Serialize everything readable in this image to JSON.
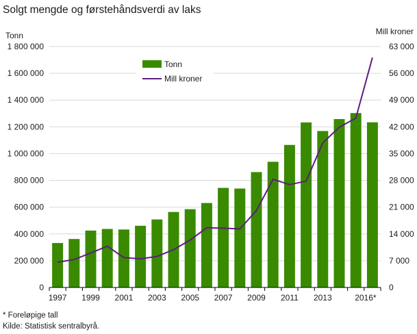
{
  "chart_data": {
    "type": "bar+line",
    "title": "Solgt mengde og førstehåndsverdi av laks",
    "categories": [
      "1997",
      "1998",
      "1999",
      "2000",
      "2001",
      "2002",
      "2003",
      "2004",
      "2005",
      "2006",
      "2007",
      "2008",
      "2009",
      "2010",
      "2011",
      "2012",
      "2013",
      "2014",
      "2015",
      "2016*"
    ],
    "x_tick_labels": [
      "1997",
      "1999",
      "2001",
      "2003",
      "2005",
      "2007",
      "2009",
      "2011",
      "2013",
      "2016*"
    ],
    "series": [
      {
        "name": "Tonn",
        "type": "bar",
        "axis": "left",
        "color": "#3a8a00",
        "values": [
          332000,
          362000,
          425000,
          437000,
          433000,
          461000,
          508000,
          564000,
          585000,
          631000,
          744000,
          739000,
          862000,
          939000,
          1065000,
          1233000,
          1169000,
          1258000,
          1303000,
          1234000
        ]
      },
      {
        "name": "Mill kroner",
        "type": "line",
        "axis": "right",
        "color": "#5b1e7d",
        "values": [
          6600,
          7300,
          9000,
          10800,
          7800,
          7500,
          8100,
          9900,
          12400,
          15600,
          15500,
          15300,
          20100,
          28300,
          26900,
          27800,
          37800,
          41900,
          44300,
          60100
        ]
      }
    ],
    "y_left": {
      "label": "Tonn",
      "min": 0,
      "max": 1800000,
      "ticks": [
        0,
        200000,
        400000,
        600000,
        800000,
        1000000,
        1200000,
        1400000,
        1600000,
        1800000
      ],
      "tick_labels": [
        "0",
        "200 000",
        "400 000",
        "600 000",
        "800 000",
        "1 000 000",
        "1 200 000",
        "1 400 000",
        "1 600 000",
        "1 800 000"
      ]
    },
    "y_right": {
      "label": "Mill kroner",
      "min": 0,
      "max": 63000,
      "ticks": [
        0,
        7000,
        14000,
        21000,
        28000,
        35000,
        42000,
        49000,
        56000,
        63000
      ],
      "tick_labels": [
        "0",
        "7 000",
        "14 000",
        "21 000",
        "28 000",
        "35 000",
        "42 000",
        "49 000",
        "56 000",
        "63 000"
      ]
    },
    "grid": true,
    "legend_position": "top-left"
  },
  "footnotes": {
    "preliminary": "* Foreløpige tall",
    "source": "Kilde: Statistisk sentralbyrå."
  }
}
